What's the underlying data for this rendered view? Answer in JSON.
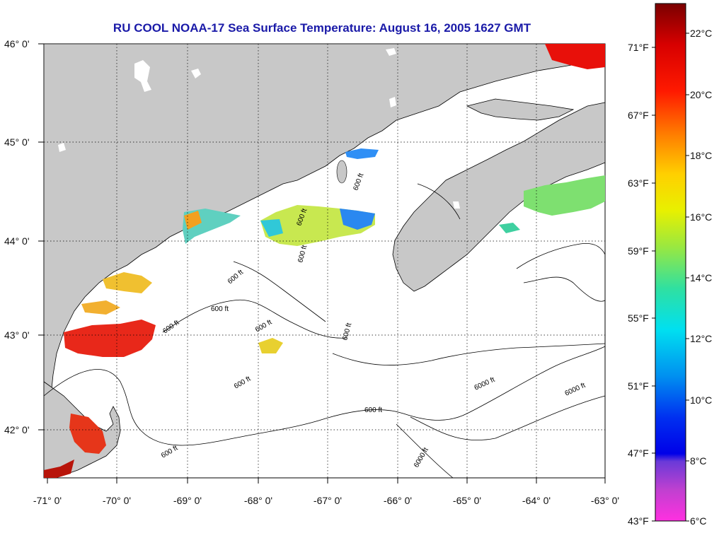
{
  "title": "RU COOL  NOAA-17  Sea Surface Temperature:  August 16, 2005 1627 GMT",
  "lat_labels": [
    "46° 0'",
    "45° 0'",
    "44° 0'",
    "43° 0'",
    "42° 0'"
  ],
  "lon_labels": [
    "-71° 0'",
    "-70° 0'",
    "-69° 0'",
    "-68° 0'",
    "-67° 0'",
    "-66° 0'",
    "-65° 0'",
    "-64° 0'",
    "-63° 0'"
  ],
  "contour_labels": [
    "600 ft",
    "600 ft",
    "600 ft",
    "600 ft",
    "600 ft",
    "600 ft",
    "600 ft",
    "600 ft",
    "600 ft",
    "600 ft",
    "600 ft",
    "6000 ft",
    "6000 ft",
    "6000 ft"
  ],
  "colorbar": {
    "celsius": [
      "22°C",
      "20°C",
      "18°C",
      "16°C",
      "14°C",
      "12°C",
      "10°C",
      "8°C",
      "6°C"
    ],
    "fahrenheit": [
      "71°F",
      "67°F",
      "63°F",
      "59°F",
      "55°F",
      "51°F",
      "47°F",
      "43°F"
    ]
  },
  "colors": {
    "land": "#c8c8c8",
    "title": "#1a1aa8",
    "warm": "#e21a0c",
    "cool": "#1f8ff0"
  }
}
